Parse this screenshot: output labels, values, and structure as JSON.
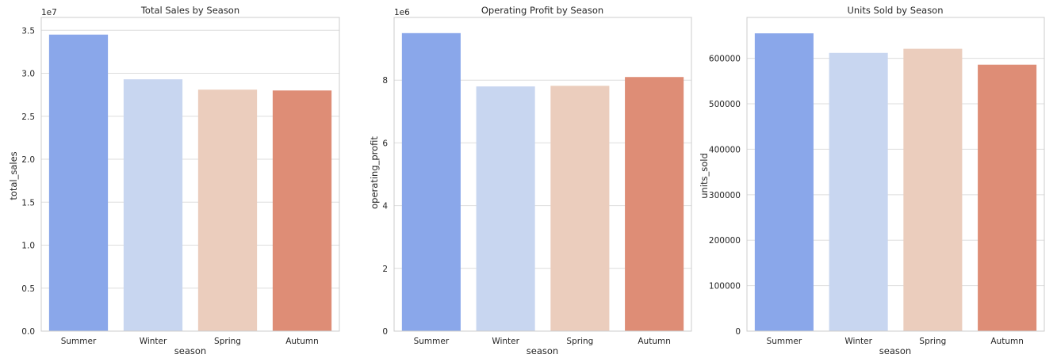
{
  "colors": {
    "palette": [
      "#8aa7ea",
      "#c8d6f0",
      "#ebcdbd",
      "#de8d76"
    ],
    "grid": "#dddddd",
    "spine": "#cccccc",
    "background": "#ffffff"
  },
  "chart_data": [
    {
      "type": "bar",
      "title": "Total Sales by Season",
      "xlabel": "season",
      "ylabel": "total_sales",
      "categories": [
        "Summer",
        "Winter",
        "Spring",
        "Autumn"
      ],
      "values": [
        34500000,
        29300000,
        28100000,
        28000000
      ],
      "ylim": [
        0,
        36500000
      ],
      "yticks": [
        0,
        5000000,
        10000000,
        15000000,
        20000000,
        25000000,
        30000000,
        35000000
      ],
      "ytick_labels": [
        "0.0",
        "0.5",
        "1.0",
        "1.5",
        "2.0",
        "2.5",
        "3.0",
        "3.5"
      ],
      "offset_label": "1e7",
      "grid": true
    },
    {
      "type": "bar",
      "title": "Operating Profit by Season",
      "xlabel": "season",
      "ylabel": "operating_profit",
      "categories": [
        "Summer",
        "Winter",
        "Spring",
        "Autumn"
      ],
      "values": [
        9500000,
        7800000,
        7820000,
        8100000
      ],
      "ylim": [
        0,
        10000000
      ],
      "yticks": [
        0,
        2000000,
        4000000,
        6000000,
        8000000
      ],
      "ytick_labels": [
        "0",
        "2",
        "4",
        "6",
        "8"
      ],
      "offset_label": "1e6",
      "grid": true
    },
    {
      "type": "bar",
      "title": "Units Sold by Season",
      "xlabel": "season",
      "ylabel": "units_sold",
      "categories": [
        "Summer",
        "Winter",
        "Spring",
        "Autumn"
      ],
      "values": [
        655000,
        612000,
        621000,
        586000
      ],
      "ylim": [
        0,
        690000
      ],
      "yticks": [
        0,
        100000,
        200000,
        300000,
        400000,
        500000,
        600000
      ],
      "ytick_labels": [
        "0",
        "100000",
        "200000",
        "300000",
        "400000",
        "500000",
        "600000"
      ],
      "offset_label": "",
      "grid": true
    }
  ]
}
